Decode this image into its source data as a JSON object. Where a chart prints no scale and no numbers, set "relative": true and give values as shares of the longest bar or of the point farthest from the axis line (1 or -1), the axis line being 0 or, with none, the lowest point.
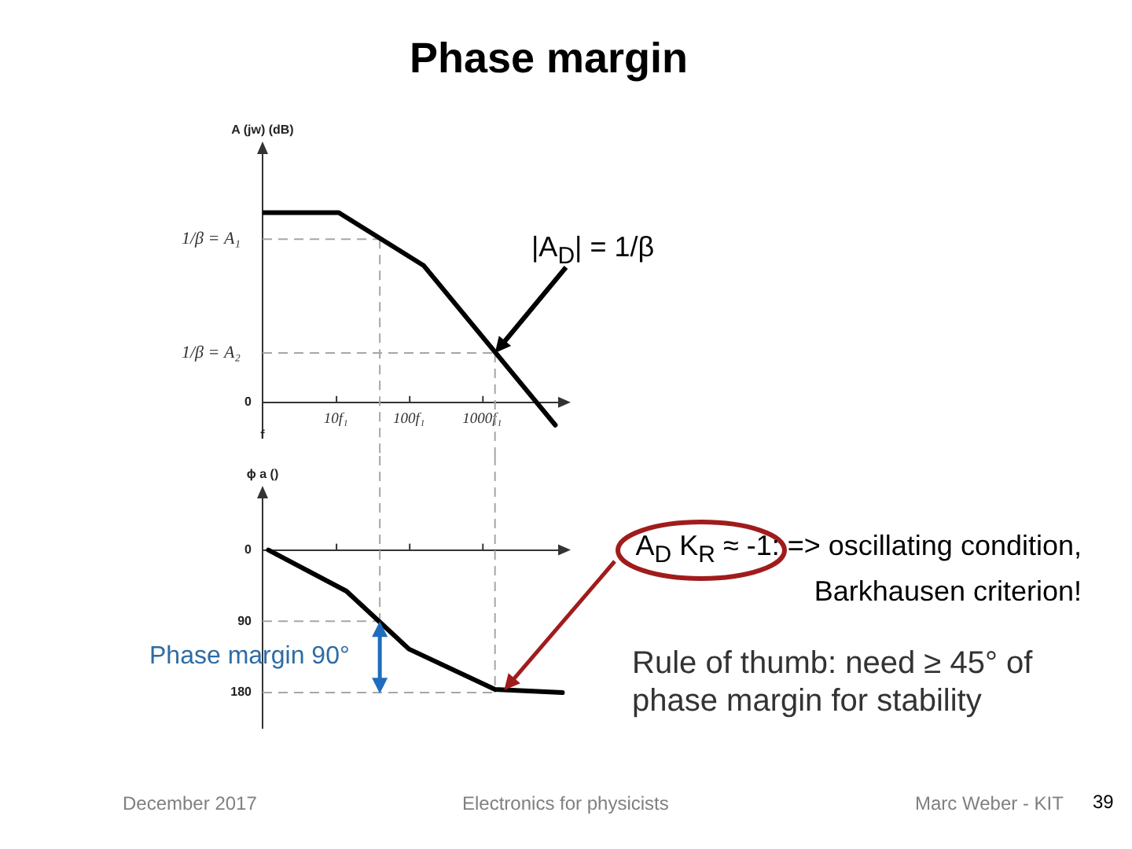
{
  "chart_data": [
    {
      "type": "line",
      "title": "Phase margin",
      "ylabel": "A (jw) (dB)",
      "xlabel": "f",
      "relative": true,
      "log": "x",
      "xlim": [
        1,
        14000
      ],
      "xticks": [
        {
          "value": 10,
          "label": "10f₁"
        },
        {
          "value": 100,
          "label": "100f₁"
        },
        {
          "value": 1000,
          "label": "1000f₁"
        }
      ],
      "tick_labels": "x",
      "x": [
        1,
        11,
        160,
        10000
      ],
      "values": [
        1,
        1,
        0.72,
        -0.12
      ],
      "color": "#000000",
      "ref_lines": [
        {
          "axis": "y",
          "value": 0.86,
          "label": "1/β = A₁",
          "color": "#a6a6a6",
          "line_style": "dashed"
        },
        {
          "axis": "y",
          "value": 0.26,
          "label": "1/β = A₂",
          "color": "#a6a6a6",
          "line_style": "dashed"
        },
        {
          "axis": "x",
          "value": 40,
          "color": "#a6a6a6",
          "line_style": "dashed"
        },
        {
          "axis": "x",
          "value": 1500,
          "color": "#a6a6a6",
          "line_style": "dashed"
        }
      ],
      "annotations": [
        {
          "text": "|A$_{D}$| = 1/β",
          "x": 1500,
          "y": 0.26
        },
        "0"
      ]
    },
    {
      "type": "line",
      "ylabel": "ϕ a ()",
      "log": "x",
      "xlim": [
        1,
        14000
      ],
      "xticks": [
        {
          "value": 10,
          "label": null
        },
        {
          "value": 100,
          "label": null
        },
        {
          "value": 1000,
          "label": null
        }
      ],
      "ylim": [
        225,
        -75
      ],
      "yticks": [
        0,
        90,
        180
      ],
      "tick_labels": "y",
      "x": [
        1.2,
        14,
        100,
        1500,
        12500
      ],
      "values": [
        0,
        52,
        125,
        176,
        180
      ],
      "color": "#000000",
      "ref_lines": [
        {
          "axis": "y",
          "value": 90,
          "color": "#a6a6a6",
          "line_style": "dashed"
        },
        {
          "axis": "y",
          "value": 180,
          "color": "#a6a6a6",
          "line_style": "dashed"
        },
        {
          "axis": "x",
          "value": 40,
          "color": "#a6a6a6",
          "line_style": "dashed"
        },
        {
          "axis": "x",
          "value": 1500,
          "color": "#a6a6a6",
          "line_style": "dashed"
        }
      ],
      "annotations": [
        {
          "text": "A$_{D}$ K$_{R}$ ≈ -1:  => oscillating condition, Barkhausen criterion!",
          "x": 2000,
          "y": 177
        },
        {
          "text": "Phase margin 90°",
          "x": 40,
          "y": 90
        },
        "Rule of thumb: need ≥ 45° of phase margin for stability",
        "December 2017",
        "Electronics for physicists",
        "Marc Weber - KIT",
        "39"
      ]
    }
  ]
}
